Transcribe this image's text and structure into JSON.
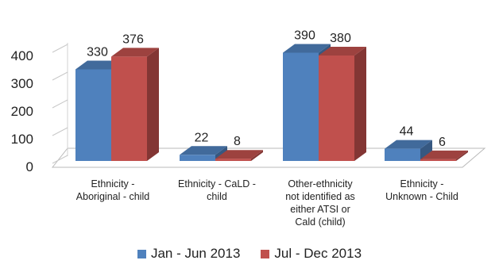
{
  "chart_data": {
    "type": "bar",
    "style": "3d-clustered-column",
    "title": "",
    "xlabel": "",
    "ylabel": "",
    "ylim": [
      0,
      400
    ],
    "yticks": [
      0,
      100,
      200,
      300,
      400
    ],
    "grid": false,
    "legend_position": "bottom",
    "categories": [
      [
        "Ethnicity -",
        "Aboriginal - child"
      ],
      [
        "Ethnicity - CaLD -",
        "child"
      ],
      [
        "Other-ethnicity",
        "not identified as",
        "either ATSI or",
        "Cald (child)"
      ],
      [
        "Ethnicity -",
        "Unknown - Child"
      ]
    ],
    "series": [
      {
        "name": "Jan - Jun 2013",
        "color": "#4F81BD",
        "values": [
          330,
          22,
          390,
          44
        ]
      },
      {
        "name": "Jul - Dec  2013",
        "color": "#C0504D",
        "values": [
          376,
          8,
          380,
          6
        ]
      }
    ]
  }
}
